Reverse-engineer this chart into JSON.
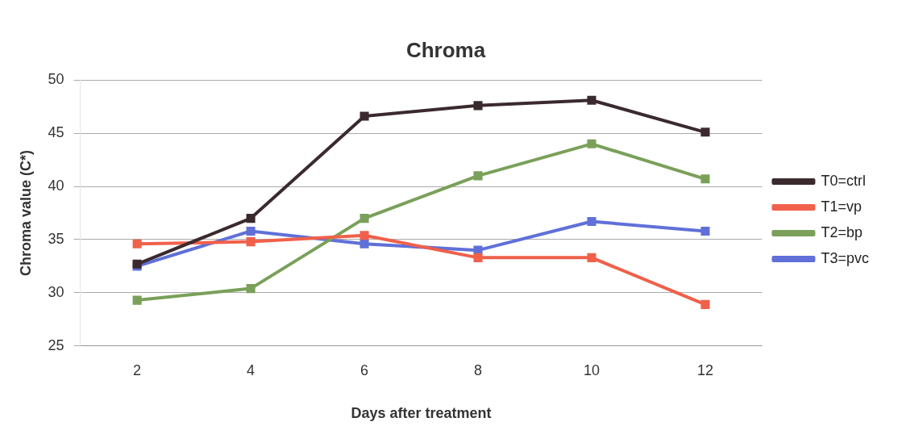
{
  "chart_data": {
    "type": "line",
    "title": "Chroma",
    "xlabel": "Days after treatment",
    "ylabel": "Chroma value (C*)",
    "categories": [
      "2",
      "4",
      "6",
      "8",
      "10",
      "12"
    ],
    "series": [
      {
        "name": "T0=ctrl",
        "color": "#3a2a2e",
        "values": [
          32.7,
          37.0,
          46.6,
          47.6,
          48.1,
          45.1
        ]
      },
      {
        "name": "T1=vp",
        "color": "#f0604a",
        "values": [
          34.6,
          34.8,
          35.4,
          33.3,
          33.3,
          28.9
        ]
      },
      {
        "name": "T2=bp",
        "color": "#7aa05a",
        "values": [
          29.3,
          30.4,
          37.0,
          41.0,
          44.0,
          40.7
        ]
      },
      {
        "name": "T3=pvc",
        "color": "#6070d8",
        "values": [
          32.5,
          35.8,
          34.6,
          34.0,
          36.7,
          35.8
        ]
      }
    ],
    "ylim": [
      25,
      50
    ],
    "yticks": [
      25,
      30,
      35,
      40,
      45,
      50
    ],
    "grid": "y",
    "legend": "right",
    "marker": "square",
    "line_style": "solid"
  }
}
